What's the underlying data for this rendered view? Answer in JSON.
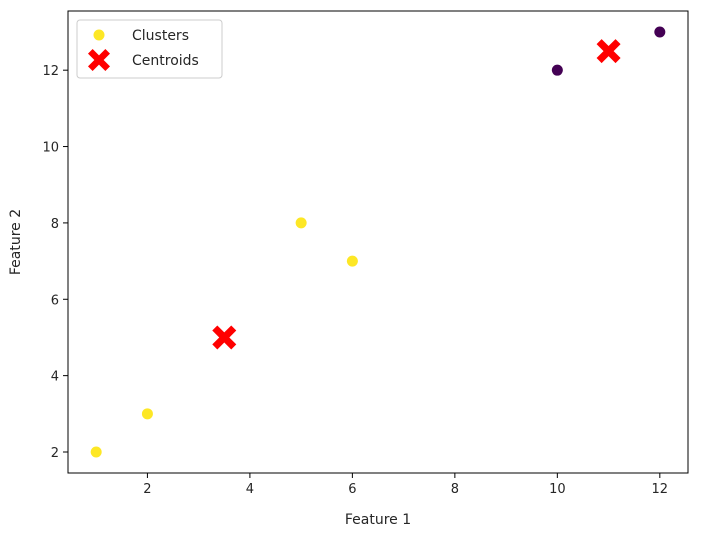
{
  "chart_data": {
    "type": "scatter",
    "title": "",
    "xlabel": "Feature 1",
    "ylabel": "Feature 2",
    "xlim": [
      0.45,
      12.55
    ],
    "ylim": [
      1.45,
      13.55
    ],
    "xticks": [
      2,
      4,
      6,
      8,
      10,
      12
    ],
    "yticks": [
      2,
      4,
      6,
      8,
      10,
      12
    ],
    "grid": false,
    "legend_position": "upper-left",
    "series": [
      {
        "name": "Clusters",
        "marker": "circle",
        "points": [
          {
            "x": 1,
            "y": 2,
            "cluster": 1,
            "color": "#fde725"
          },
          {
            "x": 2,
            "y": 3,
            "cluster": 1,
            "color": "#fde725"
          },
          {
            "x": 5,
            "y": 8,
            "cluster": 1,
            "color": "#fde725"
          },
          {
            "x": 6,
            "y": 7,
            "cluster": 1,
            "color": "#fde725"
          },
          {
            "x": 10,
            "y": 12,
            "cluster": 0,
            "color": "#440154"
          },
          {
            "x": 12,
            "y": 13,
            "cluster": 0,
            "color": "#440154"
          }
        ]
      },
      {
        "name": "Centroids",
        "marker": "X",
        "color": "#ff0000",
        "points": [
          {
            "x": 3.5,
            "y": 5
          },
          {
            "x": 11,
            "y": 12.5
          }
        ]
      }
    ],
    "legend": [
      {
        "label": "Clusters",
        "marker": "circle",
        "color": "#fde725"
      },
      {
        "label": "Centroids",
        "marker": "X",
        "color": "#ff0000"
      }
    ]
  }
}
